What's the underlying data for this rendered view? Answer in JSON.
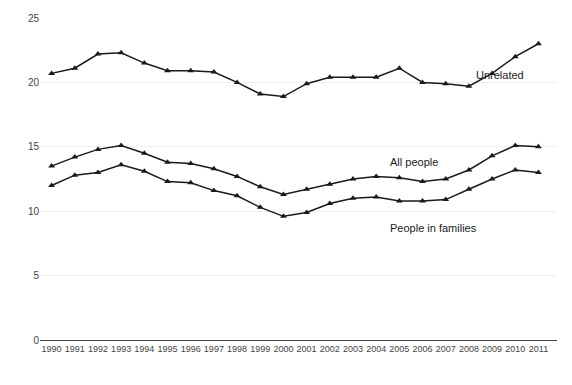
{
  "chart_data": {
    "type": "line",
    "x": [
      1990,
      1991,
      1992,
      1993,
      1994,
      1995,
      1996,
      1997,
      1998,
      1999,
      2000,
      2001,
      2002,
      2003,
      2004,
      2005,
      2006,
      2007,
      2008,
      2009,
      2010,
      2011
    ],
    "series": [
      {
        "color": "#1a1a1a",
        "marker": "triangle-up",
        "values": [
          20.7,
          21.1,
          22.2,
          22.3,
          21.5,
          20.9,
          20.9,
          20.8,
          20.0,
          19.1,
          18.9,
          19.9,
          20.4,
          20.4,
          20.4,
          21.1,
          20.0,
          19.9,
          19.7,
          20.7,
          22.0,
          23.0
        ]
      },
      {
        "color": "#1a1a1a",
        "marker": "triangle-up",
        "values": [
          13.5,
          14.2,
          14.8,
          15.1,
          14.5,
          13.8,
          13.7,
          13.3,
          12.7,
          11.9,
          11.3,
          11.7,
          12.1,
          12.5,
          12.7,
          12.6,
          12.3,
          12.5,
          13.2,
          14.3,
          15.1,
          15.0
        ]
      },
      {
        "color": "#1a1a1a",
        "marker": "triangle-up",
        "values": [
          12.0,
          12.8,
          13.0,
          13.6,
          13.1,
          12.3,
          12.2,
          11.6,
          11.2,
          10.3,
          9.6,
          9.9,
          10.6,
          11.0,
          11.1,
          10.8,
          10.8,
          10.9,
          11.7,
          12.5,
          13.2,
          13.0
        ]
      }
    ],
    "annotations": [
      {
        "text": "Unrelated",
        "x": 2008.2,
        "y": 20.6,
        "color": "#1a1a1a"
      },
      {
        "text": "All people",
        "x": 2004.5,
        "y": 13.85,
        "color": "#1a1a1a"
      },
      {
        "text": "People in families",
        "x": 2004.5,
        "y": 8.7,
        "color": "#1a1a1a"
      }
    ],
    "xlim": [
      1989.5,
      2011.8
    ],
    "xticks": [
      1990,
      1991,
      1992,
      1993,
      1994,
      1995,
      1996,
      1997,
      1998,
      1999,
      2000,
      2001,
      2002,
      2003,
      2004,
      2005,
      2006,
      2007,
      2008,
      2009,
      2010,
      2011
    ],
    "ylim": [
      0,
      25
    ],
    "yticks": [
      0,
      5,
      10,
      15,
      20,
      25
    ],
    "grid": "y"
  }
}
